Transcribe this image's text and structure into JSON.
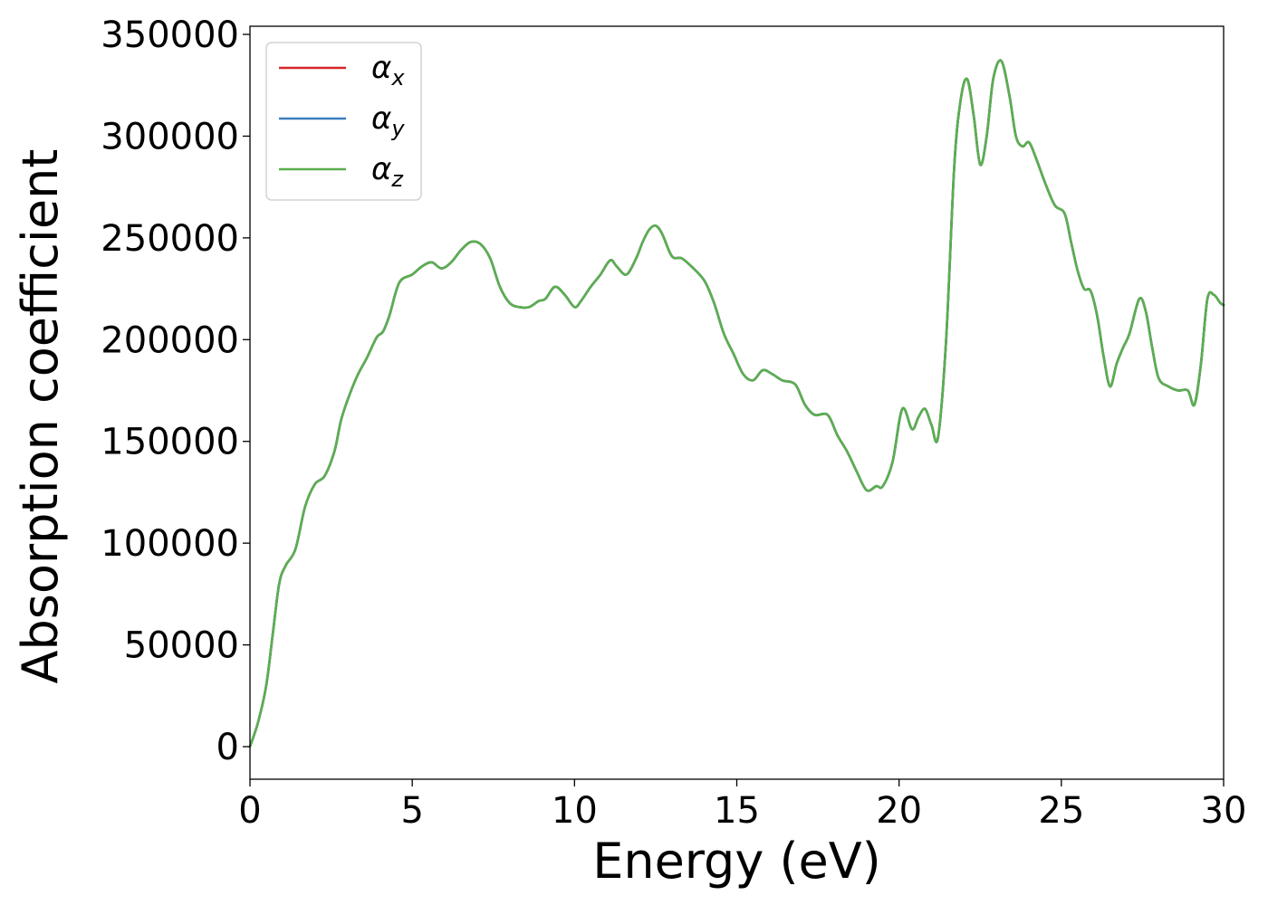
{
  "chart_data": {
    "type": "line",
    "title": "",
    "xlabel": "Energy (eV)",
    "ylabel": "Absorption coefficient",
    "xlim": [
      0,
      30
    ],
    "ylim": [
      -16000,
      354000
    ],
    "xticks": [
      "0",
      "5",
      "10",
      "15",
      "20",
      "25",
      "30"
    ],
    "xtick_values": [
      0,
      5,
      10,
      15,
      20,
      25,
      30
    ],
    "yticks": [
      "0",
      "50000",
      "100000",
      "150000",
      "200000",
      "250000",
      "300000",
      "350000"
    ],
    "ytick_values": [
      0,
      50000,
      100000,
      150000,
      200000,
      250000,
      300000,
      350000
    ],
    "grid": false,
    "legend_placement": "upper-left",
    "series": [
      {
        "name": "α",
        "subscript": "x",
        "color": "#d62728",
        "ref": "curve"
      },
      {
        "name": "α",
        "subscript": "y",
        "color": "#3a7ebf",
        "ref": "curve"
      },
      {
        "name": "α",
        "subscript": "z",
        "color": "#5aaf4f",
        "ref": "curve"
      }
    ],
    "curve": {
      "x": [
        0,
        0.25,
        0.5,
        0.7,
        0.9,
        1.1,
        1.4,
        1.7,
        2.0,
        2.3,
        2.6,
        2.8,
        3.0,
        3.3,
        3.6,
        3.9,
        4.1,
        4.3,
        4.6,
        5.0,
        5.3,
        5.6,
        5.9,
        6.2,
        6.5,
        6.8,
        7.1,
        7.4,
        7.7,
        8.0,
        8.3,
        8.6,
        8.9,
        9.1,
        9.4,
        9.7,
        10.0,
        10.2,
        10.5,
        10.8,
        11.1,
        11.3,
        11.6,
        11.9,
        12.1,
        12.3,
        12.5,
        12.7,
        13.0,
        13.3,
        13.6,
        14.0,
        14.3,
        14.6,
        14.9,
        15.2,
        15.5,
        15.8,
        16.1,
        16.4,
        16.8,
        17.1,
        17.4,
        17.8,
        18.1,
        18.4,
        18.7,
        19.0,
        19.3,
        19.5,
        19.8,
        20.1,
        20.4,
        20.6,
        20.8,
        21.0,
        21.2,
        21.45,
        21.7,
        21.9,
        22.1,
        22.3,
        22.5,
        22.7,
        22.9,
        23.15,
        23.4,
        23.6,
        23.8,
        24.0,
        24.2,
        24.5,
        24.8,
        25.1,
        25.3,
        25.5,
        25.7,
        25.9,
        26.1,
        26.3,
        26.5,
        26.7,
        26.9,
        27.1,
        27.4,
        27.6,
        27.8,
        28.0,
        28.3,
        28.6,
        28.9,
        29.1,
        29.3,
        29.5,
        29.7,
        29.9,
        30.0
      ],
      "y": [
        0,
        12000,
        30000,
        55000,
        80000,
        89000,
        97000,
        118000,
        129000,
        133000,
        145000,
        160000,
        170000,
        182000,
        191000,
        201000,
        204000,
        212000,
        228000,
        232000,
        236000,
        238000,
        235000,
        238000,
        244000,
        248000,
        247000,
        240000,
        226000,
        218000,
        216000,
        216000,
        219000,
        220000,
        226000,
        222000,
        216000,
        219000,
        226000,
        232000,
        239000,
        236000,
        232000,
        240000,
        248000,
        254000,
        256000,
        252000,
        241000,
        240000,
        236000,
        229000,
        218000,
        203000,
        193000,
        183000,
        180000,
        185000,
        183000,
        180000,
        178000,
        168000,
        163000,
        163000,
        153000,
        145000,
        135000,
        126000,
        128000,
        128000,
        140000,
        166000,
        156000,
        162000,
        166000,
        158000,
        152000,
        200000,
        285000,
        318000,
        328000,
        310000,
        286000,
        300000,
        328000,
        337000,
        320000,
        300000,
        295000,
        297000,
        290000,
        277000,
        266000,
        262000,
        248000,
        234000,
        225000,
        224000,
        212000,
        192000,
        177000,
        188000,
        196000,
        203000,
        220000,
        214000,
        196000,
        181000,
        177000,
        175000,
        175000,
        168000,
        188000,
        220000,
        222000,
        218000,
        217000
      ]
    }
  }
}
